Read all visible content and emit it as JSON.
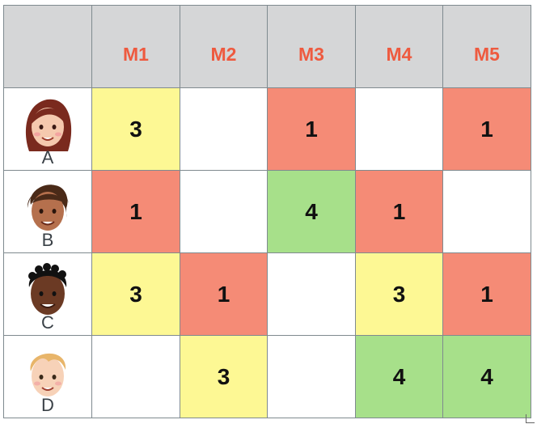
{
  "columns": [
    "M1",
    "M2",
    "M3",
    "M4",
    "M5"
  ],
  "rows": [
    {
      "label": "A",
      "icon": "woman-face-icon",
      "cells": [
        {
          "value": "3",
          "color": "yellow"
        },
        {
          "value": "",
          "color": "white"
        },
        {
          "value": "1",
          "color": "red"
        },
        {
          "value": "",
          "color": "white"
        },
        {
          "value": "1",
          "color": "red"
        }
      ]
    },
    {
      "label": "B",
      "icon": "woman-face-icon",
      "cells": [
        {
          "value": "1",
          "color": "red"
        },
        {
          "value": "",
          "color": "white"
        },
        {
          "value": "4",
          "color": "green"
        },
        {
          "value": "1",
          "color": "red"
        },
        {
          "value": "",
          "color": "white"
        }
      ]
    },
    {
      "label": "C",
      "icon": "man-face-icon",
      "cells": [
        {
          "value": "3",
          "color": "yellow"
        },
        {
          "value": "1",
          "color": "red"
        },
        {
          "value": "",
          "color": "white"
        },
        {
          "value": "3",
          "color": "yellow"
        },
        {
          "value": "1",
          "color": "red"
        }
      ]
    },
    {
      "label": "D",
      "icon": "boy-face-icon",
      "cells": [
        {
          "value": "",
          "color": "white"
        },
        {
          "value": "3",
          "color": "yellow"
        },
        {
          "value": "",
          "color": "white"
        },
        {
          "value": "4",
          "color": "green"
        },
        {
          "value": "4",
          "color": "green"
        }
      ]
    }
  ],
  "colors": {
    "yellow": "#fdf894",
    "red": "#f58b76",
    "green": "#a7e08a",
    "white": "#ffffff",
    "header_bg": "#d5d6d7",
    "header_text": "#ee5a3f"
  }
}
